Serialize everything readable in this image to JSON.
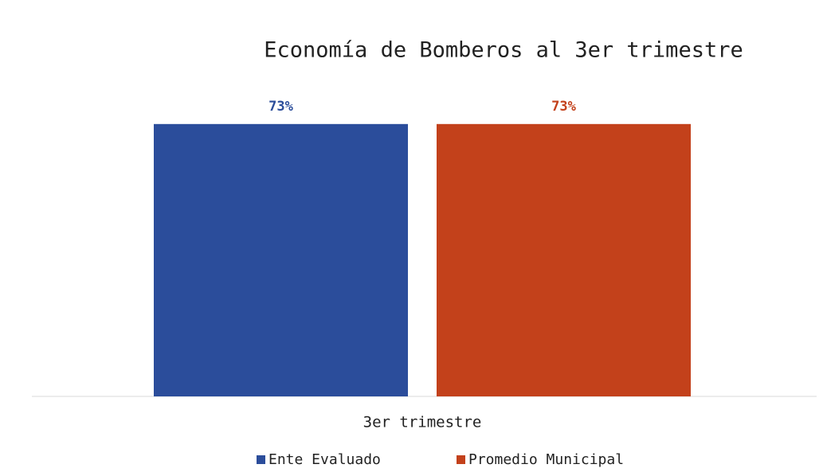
{
  "chart_data": {
    "type": "bar",
    "title": "Economía de Bomberos al 3er trimestre",
    "categories": [
      "3er trimestre"
    ],
    "series": [
      {
        "name": "Ente Evaluado",
        "color": "#2b4d9b",
        "values": [
          73
        ],
        "value_labels": [
          "73%"
        ]
      },
      {
        "name": "Promedio Municipal",
        "color": "#c3411b",
        "values": [
          73
        ],
        "value_labels": [
          "73%"
        ]
      }
    ],
    "ylim": [
      0,
      80
    ],
    "legend": "bottom"
  }
}
